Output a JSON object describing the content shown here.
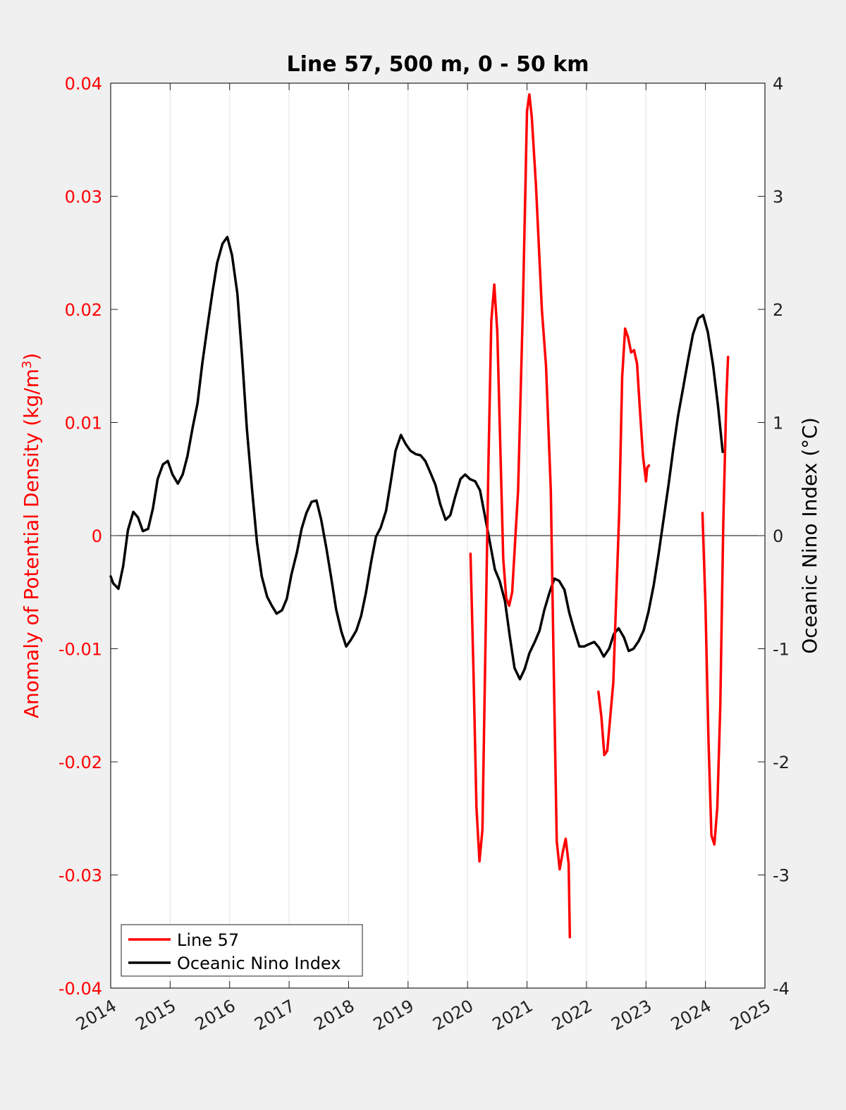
{
  "chart_data": {
    "type": "line",
    "title": "Line 57, 500 m, 0 - 50 km",
    "ylabel_left": "Anomaly of Potential Density (kg/m³)",
    "ylabel_left_base": "Anomaly of Potential Density (kg/m",
    "ylabel_left_sup": "3",
    "ylabel_left_close": ")",
    "ylabel_right": "Oceanic Nino Index (°C)",
    "xlim": [
      2014,
      2025
    ],
    "ylim_left": [
      -0.04,
      0.04
    ],
    "ylim_right": [
      -4,
      4
    ],
    "x_ticks": [
      "2014",
      "2015",
      "2016",
      "2017",
      "2018",
      "2019",
      "2020",
      "2021",
      "2022",
      "2023",
      "2024",
      "2025"
    ],
    "y_left_ticks": [
      "0.04",
      "0.03",
      "0.02",
      "0.01",
      "0",
      "-0.01",
      "-0.02",
      "-0.03",
      "-0.04"
    ],
    "y_right_ticks": [
      "4",
      "3",
      "2",
      "1",
      "0",
      "-1",
      "-2",
      "-3",
      "-4"
    ],
    "grid": "vertical",
    "zero_line": true,
    "legend_position": "bottom-left",
    "series": [
      {
        "name": "Line 57",
        "axis": "left",
        "color": "#ff0000",
        "segments": [
          [
            [
              2020.05,
              -0.0016
            ],
            [
              2020.1,
              -0.012
            ],
            [
              2020.15,
              -0.024
            ],
            [
              2020.2,
              -0.0288
            ],
            [
              2020.25,
              -0.026
            ],
            [
              2020.3,
              -0.01
            ],
            [
              2020.35,
              0.006
            ],
            [
              2020.4,
              0.019
            ],
            [
              2020.45,
              0.0222
            ],
            [
              2020.5,
              0.018
            ],
            [
              2020.55,
              0.008
            ],
            [
              2020.6,
              -0.002
            ],
            [
              2020.65,
              -0.0055
            ],
            [
              2020.7,
              -0.0062
            ],
            [
              2020.75,
              -0.005
            ],
            [
              2020.85,
              0.004
            ],
            [
              2020.93,
              0.02
            ],
            [
              2021.0,
              0.0375
            ],
            [
              2021.04,
              0.039
            ],
            [
              2021.08,
              0.037
            ],
            [
              2021.15,
              0.031
            ],
            [
              2021.25,
              0.02
            ],
            [
              2021.32,
              0.015
            ],
            [
              2021.4,
              0.004
            ],
            [
              2021.45,
              -0.012
            ],
            [
              2021.5,
              -0.027
            ],
            [
              2021.55,
              -0.0295
            ],
            [
              2021.6,
              -0.028
            ],
            [
              2021.65,
              -0.0268
            ],
            [
              2021.7,
              -0.029
            ],
            [
              2021.72,
              -0.0355
            ]
          ],
          [
            [
              2022.2,
              -0.0138
            ],
            [
              2022.25,
              -0.016
            ],
            [
              2022.3,
              -0.0194
            ],
            [
              2022.35,
              -0.019
            ],
            [
              2022.45,
              -0.013
            ],
            [
              2022.55,
              0.002
            ],
            [
              2022.6,
              0.014
            ],
            [
              2022.65,
              0.0183
            ],
            [
              2022.7,
              0.0175
            ],
            [
              2022.75,
              0.0162
            ],
            [
              2022.8,
              0.0164
            ],
            [
              2022.85,
              0.0152
            ],
            [
              2022.9,
              0.011
            ],
            [
              2022.95,
              0.007
            ],
            [
              2023.0,
              0.0048
            ],
            [
              2023.02,
              0.006
            ],
            [
              2023.05,
              0.0062
            ]
          ],
          [
            [
              2023.95,
              0.002
            ],
            [
              2024.0,
              -0.006
            ],
            [
              2024.05,
              -0.018
            ],
            [
              2024.1,
              -0.0265
            ],
            [
              2024.15,
              -0.0273
            ],
            [
              2024.2,
              -0.024
            ],
            [
              2024.25,
              -0.015
            ],
            [
              2024.3,
              0.001
            ],
            [
              2024.35,
              0.012
            ],
            [
              2024.38,
              0.0158
            ]
          ]
        ]
      },
      {
        "name": "Oceanic Nino Index",
        "axis": "right",
        "color": "#000000",
        "segments": [
          [
            [
              2014.0,
              -0.36
            ],
            [
              2014.04,
              -0.42
            ],
            [
              2014.13,
              -0.47
            ],
            [
              2014.21,
              -0.27
            ],
            [
              2014.29,
              0.05
            ],
            [
              2014.38,
              0.21
            ],
            [
              2014.46,
              0.16
            ],
            [
              2014.54,
              0.04
            ],
            [
              2014.63,
              0.06
            ],
            [
              2014.71,
              0.24
            ],
            [
              2014.79,
              0.5
            ],
            [
              2014.88,
              0.63
            ],
            [
              2014.96,
              0.66
            ],
            [
              2015.04,
              0.54
            ],
            [
              2015.13,
              0.46
            ],
            [
              2015.21,
              0.54
            ],
            [
              2015.29,
              0.7
            ],
            [
              2015.38,
              0.96
            ],
            [
              2015.46,
              1.17
            ],
            [
              2015.54,
              1.52
            ],
            [
              2015.63,
              1.86
            ],
            [
              2015.71,
              2.15
            ],
            [
              2015.79,
              2.41
            ],
            [
              2015.88,
              2.58
            ],
            [
              2015.96,
              2.64
            ],
            [
              2016.04,
              2.48
            ],
            [
              2016.13,
              2.14
            ],
            [
              2016.21,
              1.58
            ],
            [
              2016.29,
              0.94
            ],
            [
              2016.38,
              0.39
            ],
            [
              2016.46,
              -0.06
            ],
            [
              2016.54,
              -0.36
            ],
            [
              2016.63,
              -0.54
            ],
            [
              2016.71,
              -0.62
            ],
            [
              2016.79,
              -0.69
            ],
            [
              2016.88,
              -0.66
            ],
            [
              2016.96,
              -0.56
            ],
            [
              2017.04,
              -0.34
            ],
            [
              2017.13,
              -0.15
            ],
            [
              2017.21,
              0.06
            ],
            [
              2017.29,
              0.2
            ],
            [
              2017.38,
              0.3
            ],
            [
              2017.46,
              0.31
            ],
            [
              2017.54,
              0.14
            ],
            [
              2017.63,
              -0.12
            ],
            [
              2017.71,
              -0.38
            ],
            [
              2017.79,
              -0.65
            ],
            [
              2017.88,
              -0.85
            ],
            [
              2017.96,
              -0.98
            ],
            [
              2018.04,
              -0.92
            ],
            [
              2018.13,
              -0.84
            ],
            [
              2018.21,
              -0.71
            ],
            [
              2018.29,
              -0.51
            ],
            [
              2018.38,
              -0.23
            ],
            [
              2018.46,
              -0.01
            ],
            [
              2018.54,
              0.07
            ],
            [
              2018.63,
              0.22
            ],
            [
              2018.71,
              0.48
            ],
            [
              2018.79,
              0.75
            ],
            [
              2018.88,
              0.89
            ],
            [
              2018.96,
              0.81
            ],
            [
              2019.04,
              0.75
            ],
            [
              2019.13,
              0.72
            ],
            [
              2019.21,
              0.71
            ],
            [
              2019.29,
              0.66
            ],
            [
              2019.38,
              0.55
            ],
            [
              2019.46,
              0.45
            ],
            [
              2019.54,
              0.28
            ],
            [
              2019.63,
              0.14
            ],
            [
              2019.71,
              0.18
            ],
            [
              2019.79,
              0.34
            ],
            [
              2019.88,
              0.5
            ],
            [
              2019.96,
              0.54
            ],
            [
              2020.04,
              0.5
            ],
            [
              2020.13,
              0.48
            ],
            [
              2020.21,
              0.4
            ],
            [
              2020.29,
              0.18
            ],
            [
              2020.38,
              -0.07
            ],
            [
              2020.46,
              -0.3
            ],
            [
              2020.54,
              -0.4
            ],
            [
              2020.63,
              -0.58
            ],
            [
              2020.71,
              -0.89
            ],
            [
              2020.79,
              -1.17
            ],
            [
              2020.88,
              -1.27
            ],
            [
              2020.96,
              -1.18
            ],
            [
              2021.04,
              -1.04
            ],
            [
              2021.13,
              -0.94
            ],
            [
              2021.21,
              -0.84
            ],
            [
              2021.29,
              -0.66
            ],
            [
              2021.38,
              -0.5
            ],
            [
              2021.46,
              -0.38
            ],
            [
              2021.54,
              -0.4
            ],
            [
              2021.63,
              -0.48
            ],
            [
              2021.71,
              -0.68
            ],
            [
              2021.79,
              -0.83
            ],
            [
              2021.88,
              -0.98
            ],
            [
              2021.96,
              -0.98
            ],
            [
              2022.04,
              -0.96
            ],
            [
              2022.13,
              -0.94
            ],
            [
              2022.21,
              -0.99
            ],
            [
              2022.29,
              -1.07
            ],
            [
              2022.38,
              -1.0
            ],
            [
              2022.46,
              -0.87
            ],
            [
              2022.54,
              -0.82
            ],
            [
              2022.63,
              -0.9
            ],
            [
              2022.71,
              -1.02
            ],
            [
              2022.79,
              -1.0
            ],
            [
              2022.88,
              -0.93
            ],
            [
              2022.96,
              -0.84
            ],
            [
              2023.04,
              -0.68
            ],
            [
              2023.13,
              -0.44
            ],
            [
              2023.21,
              -0.17
            ],
            [
              2023.29,
              0.12
            ],
            [
              2023.38,
              0.45
            ],
            [
              2023.46,
              0.77
            ],
            [
              2023.54,
              1.06
            ],
            [
              2023.63,
              1.32
            ],
            [
              2023.71,
              1.56
            ],
            [
              2023.79,
              1.78
            ],
            [
              2023.88,
              1.92
            ],
            [
              2023.96,
              1.95
            ],
            [
              2024.04,
              1.8
            ],
            [
              2024.13,
              1.5
            ],
            [
              2024.21,
              1.15
            ],
            [
              2024.29,
              0.74
            ]
          ]
        ]
      }
    ]
  },
  "legend": {
    "items": [
      {
        "label": "Line 57",
        "color": "#ff0000"
      },
      {
        "label": "Oceanic Nino Index",
        "color": "#000000"
      }
    ]
  }
}
